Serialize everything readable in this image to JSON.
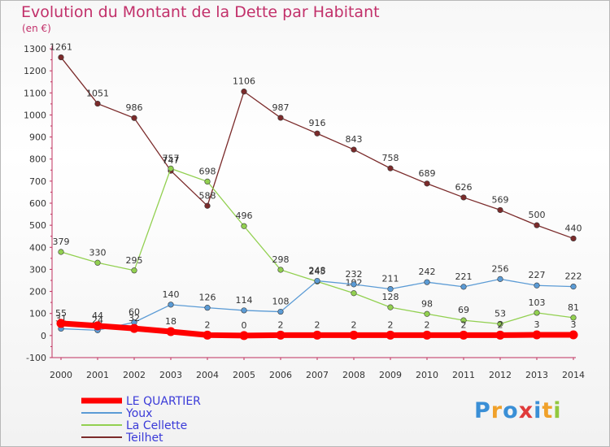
{
  "chart_data": {
    "type": "line",
    "title": "Evolution du Montant de la Dette par Habitant",
    "subtitle": "(en €)",
    "x": [
      "2000",
      "2001",
      "2002",
      "2003",
      "2004",
      "2005",
      "2006",
      "2007",
      "2008",
      "2009",
      "2010",
      "2011",
      "2012",
      "2013",
      "2014"
    ],
    "ylim": [
      -100,
      1300
    ],
    "yticks": [
      -100,
      0,
      100,
      200,
      300,
      400,
      500,
      600,
      700,
      800,
      900,
      1000,
      1100,
      1200,
      1300
    ],
    "grid": false,
    "legend_position": "bottom-left",
    "series": [
      {
        "name": "LE QUARTIER",
        "color": "#ff0000",
        "values": [
          55,
          44,
          32,
          18,
          2,
          0,
          2,
          2,
          2,
          2,
          2,
          2,
          2,
          3,
          3
        ]
      },
      {
        "name": "Youx",
        "color": "#5b9bd5",
        "values": [
          31,
          24,
          60,
          140,
          126,
          114,
          108,
          248,
          232,
          211,
          242,
          221,
          256,
          227,
          222
        ]
      },
      {
        "name": "La Cellette",
        "color": "#92d050",
        "values": [
          379,
          330,
          295,
          757,
          698,
          496,
          298,
          245,
          192,
          128,
          98,
          69,
          53,
          103,
          81
        ]
      },
      {
        "name": "Teilhet",
        "color": "#7b2b2b",
        "values": [
          1261,
          1051,
          986,
          747,
          588,
          1106,
          987,
          916,
          843,
          758,
          689,
          626,
          569,
          500,
          440
        ]
      }
    ]
  },
  "logo": {
    "text": "Proxiti",
    "letters": [
      "P",
      "r",
      "o",
      "x",
      "i",
      "t",
      "i"
    ],
    "colors": [
      "#3a8fd6",
      "#f0a12a",
      "#3a8fd6",
      "#e03a3a",
      "#3a8fd6",
      "#f0a12a",
      "#92c83e"
    ]
  }
}
